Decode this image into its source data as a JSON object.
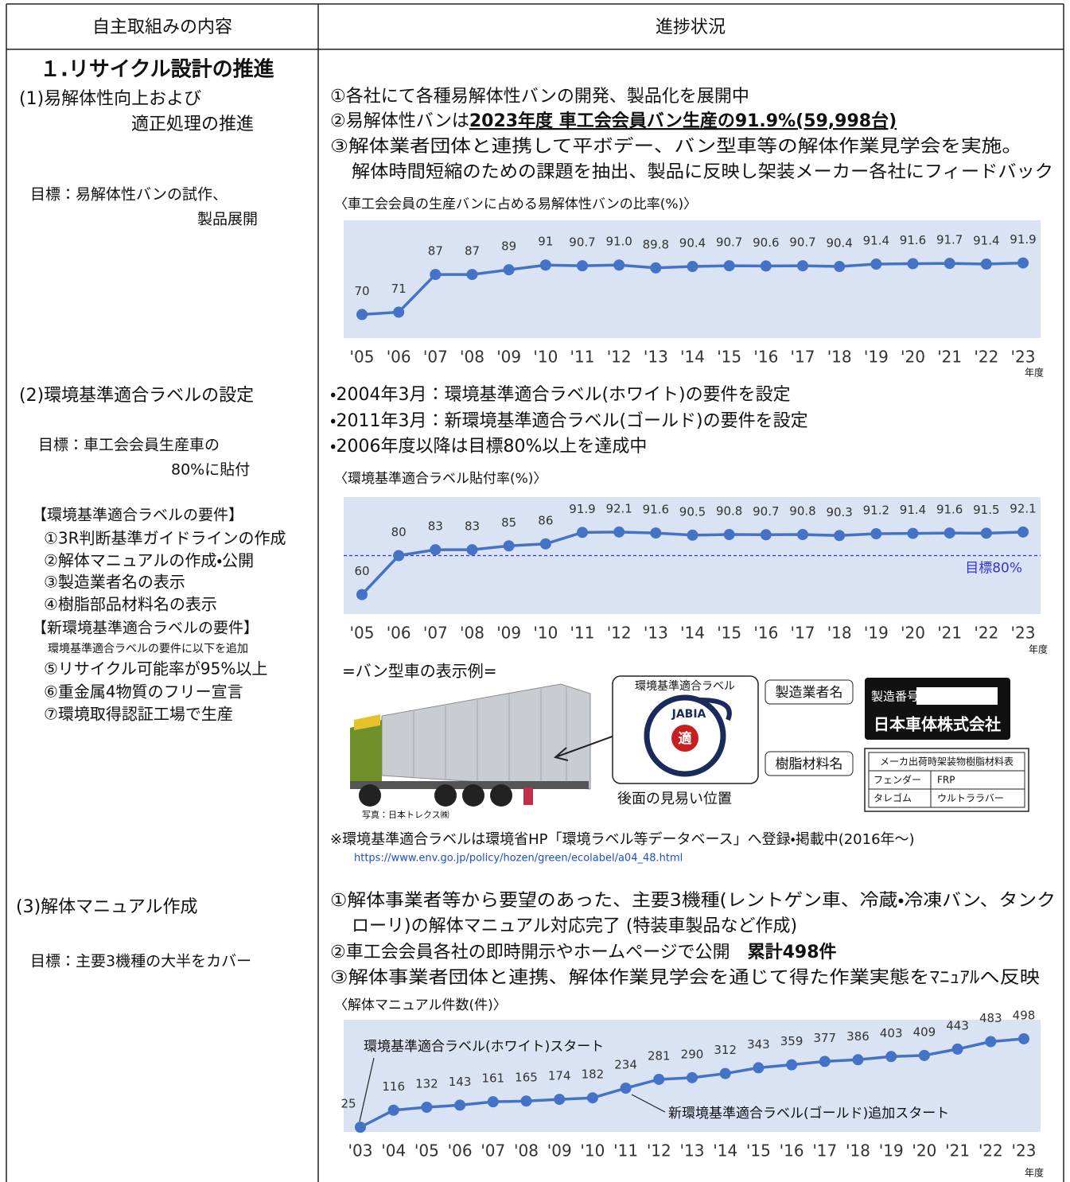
{
  "header": {
    "left": "自主取組みの内容",
    "right": "進捗状況"
  },
  "section_title": "１.リサイクル設計の推進",
  "item1": {
    "heading": [
      "(1)易解体性向上および",
      "適正処理の推進"
    ],
    "target": [
      "目標：易解体性バンの試作、",
      "製品展開"
    ],
    "progress": [
      "①各社にて各種易解体性バンの開発、製品化を展開中",
      {
        "text": "②易解体性バンは",
        "bold": "2023年度 車工会会員バン生産の91.9%(59,998台)"
      },
      "③解体業者団体と連携して平ボデー、バン型車等の解体作業見学会を実施。",
      "解体時間短縮のための課題を抽出、製品に反映し架装メーカー各社にフィードバック"
    ]
  },
  "item2": {
    "heading": "(2)環境基準適合ラベルの設定",
    "target": [
      "目標：車工会会員生産車の",
      "80%に貼付"
    ],
    "requirements_title": "【環境基準適合ラベルの要件】",
    "requirements": [
      "①3R判断基準ガイドラインの作成",
      "②解体マニュアルの作成・公開",
      "③製造業者名の表示",
      "④樹脂部品材料名の表示"
    ],
    "new_requirements_title": "【新環境基準適合ラベルの要件】",
    "new_requirements_note": "環境基準適合ラベルの要件に以下を追加",
    "new_requirements": [
      "⑤リサイクル可能率が95%以上",
      "⑥重金属4物質のフリー宣言",
      "⑦環境取得認証工場で生産"
    ],
    "progress": [
      "・2004年3月：環境基準適合ラベル(ホワイト)の要件を設定",
      "・2011年3月：新環境基準適合ラベル(ゴールド)の要件を設定",
      "・2006年度以降は目標80%以上を達成中"
    ],
    "example": {
      "title": "=バン型車の表示例=",
      "label_caption": "環境基準適合ラベル",
      "label_logo": "JABIA",
      "label_mark": "適",
      "position": "後面の見易い位置",
      "photo_credit": "写真：日本トレクス㈱",
      "maker_caption": "製造業者名",
      "serial": "製造番号",
      "maker": "日本車体株式会社",
      "resin_caption": "樹脂材料名",
      "resin_table": {
        "title": "メーカ出荷時架装物樹脂材料表",
        "rows": [
          [
            "フェンダー",
            "FRP"
          ],
          [
            "タレゴム",
            "ウルトララバー"
          ]
        ]
      }
    },
    "note": "※環境基準適合ラベルは環境省HP「環境ラベル等データベース」へ登録・掲載中(2016年～)",
    "url": "https://www.env.go.jp/policy/hozen/green/ecolabel/a04_48.html"
  },
  "item3": {
    "heading": "(3)解体マニュアル作成",
    "target": "目標：主要3機種の大半をカバー",
    "progress": [
      "①解体事業者等から要望のあった、主要3機種(レントゲン車、冷蔵・冷凍バン、タンク",
      "ローリ)の解体マニュアル対応完了 (特装車製品など作成)",
      {
        "text": "②車工会会員各社の即時開示やホームページで公開　",
        "bold": "累計498件"
      },
      "③解体事業者団体と連携、解体作業見学会を通じて得た作業実態をﾏﾆｭｱﾙへ反映"
    ]
  },
  "chart_data": [
    {
      "type": "line",
      "title": "〈車工会会員の生産バンに占める易解体性バンの比率(%)〉",
      "x_unit": "年度",
      "categories": [
        "'05",
        "'06",
        "'07",
        "'08",
        "'09",
        "'10",
        "'11",
        "'12",
        "'13",
        "'14",
        "'15",
        "'16",
        "'17",
        "'18",
        "'19",
        "'20",
        "'21",
        "'22",
        "'23"
      ],
      "values": [
        70,
        71,
        87,
        87,
        89,
        91,
        90.7,
        91.0,
        89.8,
        90.4,
        90.7,
        90.6,
        90.7,
        90.4,
        91.4,
        91.6,
        91.7,
        91.4,
        91.9
      ],
      "value_labels": [
        "70",
        "71",
        "87",
        "87",
        "89",
        "91",
        "90.7",
        "91.0",
        "89.8",
        "90.4",
        "90.7",
        "90.6",
        "90.7",
        "90.4",
        "91.4",
        "91.6",
        "91.7",
        "91.4",
        "91.9"
      ],
      "color": "#4472c4",
      "ylim": [
        60,
        110
      ]
    },
    {
      "type": "line",
      "title": "〈環境基準適合ラベル貼付率(%)〉",
      "x_unit": "年度",
      "categories": [
        "'05",
        "'06",
        "'07",
        "'08",
        "'09",
        "'10",
        "'11",
        "'12",
        "'13",
        "'14",
        "'15",
        "'16",
        "'17",
        "'18",
        "'19",
        "'20",
        "'21",
        "'22",
        "'23"
      ],
      "values": [
        60,
        80,
        83,
        83,
        85,
        86,
        91.9,
        92.1,
        91.6,
        90.5,
        90.8,
        90.7,
        90.8,
        90.3,
        91.2,
        91.4,
        91.6,
        91.5,
        92.1
      ],
      "color": "#4472c4",
      "ylim": [
        50,
        110
      ],
      "target": {
        "value": 80,
        "label": "目標80%",
        "color": "#3333dd"
      }
    },
    {
      "type": "line",
      "title": "〈解体マニュアル件数(件)〉",
      "x_unit": "年度",
      "categories": [
        "'03",
        "'04",
        "'05",
        "'06",
        "'07",
        "'08",
        "'09",
        "'10",
        "'11",
        "'12",
        "'13",
        "'14",
        "'15",
        "'16",
        "'17",
        "'18",
        "'19",
        "'20",
        "'21",
        "'22",
        "'23"
      ],
      "values": [
        25,
        116,
        132,
        143,
        161,
        165,
        174,
        182,
        234,
        281,
        290,
        312,
        343,
        359,
        377,
        386,
        403,
        409,
        443,
        483,
        498
      ],
      "color": "#4472c4",
      "ylim": [
        0,
        600
      ],
      "annotations": [
        "環境基準適合ラベル(ホワイト)スタート",
        "新環境基準適合ラベル(ゴールド)追加スタート"
      ]
    }
  ]
}
